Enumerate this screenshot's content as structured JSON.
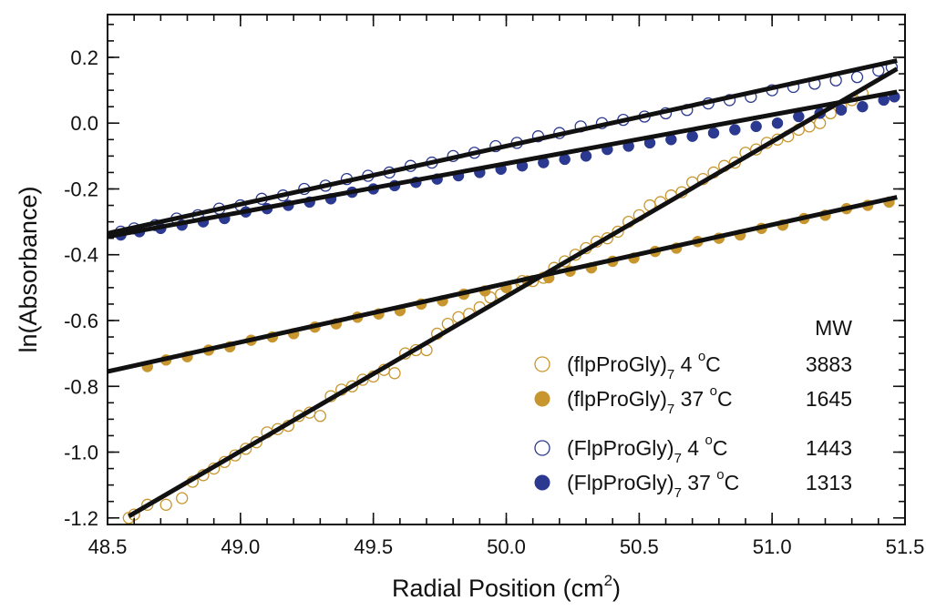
{
  "chart_data": {
    "type": "scatter",
    "xlabel": "Radial Position (cm",
    "xlabel_sup": "2",
    "xlabel_suffix": ")",
    "ylabel": "ln(Absorbance)",
    "xlim": [
      48.5,
      51.5
    ],
    "ylim": [
      -1.22,
      0.33
    ],
    "x_ticks": [
      {
        "value": 48.5,
        "label": "48.5"
      },
      {
        "value": 49.0,
        "label": "49.0"
      },
      {
        "value": 49.5,
        "label": "49.5"
      },
      {
        "value": 50.0,
        "label": "50.0"
      },
      {
        "value": 50.5,
        "label": "50.5"
      },
      {
        "value": 51.0,
        "label": "51.0"
      },
      {
        "value": 51.5,
        "label": "51.5"
      }
    ],
    "y_ticks": [
      {
        "value": -1.2,
        "label": "-1.2"
      },
      {
        "value": -1.0,
        "label": "-1.0"
      },
      {
        "value": -0.8,
        "label": "-0.8"
      },
      {
        "value": -0.6,
        "label": "-0.6"
      },
      {
        "value": -0.4,
        "label": "-0.4"
      },
      {
        "value": -0.2,
        "label": "-0.2"
      },
      {
        "value": 0.0,
        "label": "0.0"
      },
      {
        "value": 0.2,
        "label": "0.2"
      }
    ],
    "x_minor_step": 0.1,
    "y_minor_step": 0.05,
    "grid": false,
    "legend_placement": "bottom-right",
    "legend_header": "MW",
    "series": [
      {
        "name": "(flpProGly)",
        "sub": "7",
        "temp": " 4 ",
        "sup": "o",
        "unit": "C",
        "mw": "3883",
        "marker": "open-circle",
        "color": "#c8962e",
        "fit": {
          "x": [
            48.58,
            51.47
          ],
          "y": [
            -1.195,
            0.165
          ]
        },
        "x": [
          48.58,
          48.6,
          48.65,
          48.72,
          48.78,
          48.82,
          48.86,
          48.9,
          48.94,
          48.98,
          49.02,
          49.06,
          49.1,
          49.14,
          49.18,
          49.22,
          49.26,
          49.3,
          49.34,
          49.38,
          49.42,
          49.46,
          49.5,
          49.54,
          49.58,
          49.62,
          49.66,
          49.7,
          49.74,
          49.78,
          49.82,
          49.86,
          49.9,
          49.94,
          49.98,
          50.02,
          50.06,
          50.1,
          50.14,
          50.18,
          50.22,
          50.26,
          50.3,
          50.34,
          50.38,
          50.42,
          50.46,
          50.5,
          50.54,
          50.58,
          50.62,
          50.66,
          50.7,
          50.74,
          50.78,
          50.82,
          50.86,
          50.9,
          50.94,
          50.98,
          51.02,
          51.06,
          51.1,
          51.14,
          51.18,
          51.22,
          51.26,
          51.3,
          51.34
        ],
        "y": [
          -1.2,
          -1.19,
          -1.16,
          -1.16,
          -1.14,
          -1.09,
          -1.07,
          -1.05,
          -1.03,
          -1.01,
          -0.99,
          -0.97,
          -0.94,
          -0.93,
          -0.92,
          -0.89,
          -0.88,
          -0.89,
          -0.83,
          -0.81,
          -0.8,
          -0.78,
          -0.77,
          -0.75,
          -0.76,
          -0.7,
          -0.69,
          -0.69,
          -0.64,
          -0.61,
          -0.59,
          -0.58,
          -0.56,
          -0.53,
          -0.52,
          -0.5,
          -0.48,
          -0.48,
          -0.47,
          -0.44,
          -0.42,
          -0.4,
          -0.38,
          -0.36,
          -0.35,
          -0.33,
          -0.3,
          -0.28,
          -0.25,
          -0.24,
          -0.22,
          -0.21,
          -0.18,
          -0.17,
          -0.15,
          -0.13,
          -0.12,
          -0.09,
          -0.08,
          -0.06,
          -0.05,
          -0.04,
          -0.02,
          -0.01,
          0.0,
          0.03,
          0.05,
          0.07,
          0.09
        ]
      },
      {
        "name": "(flpProGly)",
        "sub": "7",
        "temp": " 37 ",
        "sup": "o",
        "unit": "C",
        "mw": "1645",
        "marker": "filled-circle",
        "color": "#c8962e",
        "fit": {
          "x": [
            48.5,
            51.47
          ],
          "y": [
            -0.755,
            -0.225
          ]
        },
        "x": [
          48.65,
          48.72,
          48.8,
          48.88,
          48.96,
          49.04,
          49.12,
          49.2,
          49.28,
          49.36,
          49.44,
          49.52,
          49.6,
          49.68,
          49.76,
          49.84,
          49.92,
          50.0,
          50.08,
          50.16,
          50.24,
          50.32,
          50.4,
          50.48,
          50.56,
          50.64,
          50.72,
          50.8,
          50.88,
          50.96,
          51.04,
          51.12,
          51.2,
          51.28,
          51.36,
          51.44
        ],
        "y": [
          -0.74,
          -0.72,
          -0.71,
          -0.69,
          -0.68,
          -0.66,
          -0.65,
          -0.64,
          -0.62,
          -0.61,
          -0.59,
          -0.58,
          -0.57,
          -0.55,
          -0.54,
          -0.52,
          -0.51,
          -0.5,
          -0.48,
          -0.47,
          -0.45,
          -0.44,
          -0.42,
          -0.41,
          -0.39,
          -0.38,
          -0.36,
          -0.35,
          -0.34,
          -0.32,
          -0.31,
          -0.29,
          -0.28,
          -0.26,
          -0.25,
          -0.24
        ]
      },
      {
        "name": "(FlpProGly)",
        "sub": "7",
        "temp": " 4 ",
        "sup": "o",
        "unit": "C",
        "mw": "1443",
        "marker": "open-circle",
        "color": "#2b3990",
        "fit": {
          "x": [
            48.5,
            51.47
          ],
          "y": [
            -0.335,
            0.19
          ]
        },
        "x": [
          48.55,
          48.6,
          48.68,
          48.76,
          48.84,
          48.92,
          49.0,
          49.08,
          49.16,
          49.24,
          49.32,
          49.4,
          49.48,
          49.56,
          49.64,
          49.72,
          49.8,
          49.88,
          49.96,
          50.04,
          50.12,
          50.2,
          50.28,
          50.36,
          50.44,
          50.52,
          50.6,
          50.68,
          50.76,
          50.84,
          50.92,
          51.0,
          51.08,
          51.16,
          51.24,
          51.32,
          51.4,
          51.45
        ],
        "y": [
          -0.33,
          -0.32,
          -0.31,
          -0.29,
          -0.28,
          -0.26,
          -0.25,
          -0.23,
          -0.22,
          -0.2,
          -0.19,
          -0.17,
          -0.16,
          -0.15,
          -0.13,
          -0.12,
          -0.1,
          -0.09,
          -0.07,
          -0.06,
          -0.04,
          -0.03,
          -0.01,
          0.0,
          0.01,
          0.02,
          0.03,
          0.04,
          0.06,
          0.07,
          0.08,
          0.1,
          0.11,
          0.12,
          0.13,
          0.14,
          0.16,
          0.17
        ]
      },
      {
        "name": "(FlpProGly)",
        "sub": "7",
        "temp": " 37 ",
        "sup": "o",
        "unit": "C",
        "mw": "1313",
        "marker": "filled-circle",
        "color": "#2b3990",
        "fit": {
          "x": [
            48.5,
            51.47
          ],
          "y": [
            -0.345,
            0.095
          ]
        },
        "x": [
          48.55,
          48.62,
          48.7,
          48.78,
          48.86,
          48.94,
          49.02,
          49.1,
          49.18,
          49.26,
          49.34,
          49.42,
          49.5,
          49.58,
          49.66,
          49.74,
          49.82,
          49.9,
          49.98,
          50.06,
          50.14,
          50.22,
          50.3,
          50.38,
          50.46,
          50.54,
          50.62,
          50.7,
          50.78,
          50.86,
          50.94,
          51.02,
          51.1,
          51.18,
          51.26,
          51.34,
          51.42,
          51.46
        ],
        "y": [
          -0.34,
          -0.33,
          -0.32,
          -0.31,
          -0.3,
          -0.29,
          -0.27,
          -0.26,
          -0.25,
          -0.24,
          -0.23,
          -0.21,
          -0.2,
          -0.19,
          -0.18,
          -0.17,
          -0.16,
          -0.15,
          -0.14,
          -0.13,
          -0.12,
          -0.11,
          -0.1,
          -0.08,
          -0.07,
          -0.06,
          -0.05,
          -0.04,
          -0.03,
          -0.02,
          -0.01,
          0.0,
          0.02,
          0.03,
          0.04,
          0.05,
          0.07,
          0.08
        ]
      }
    ]
  }
}
